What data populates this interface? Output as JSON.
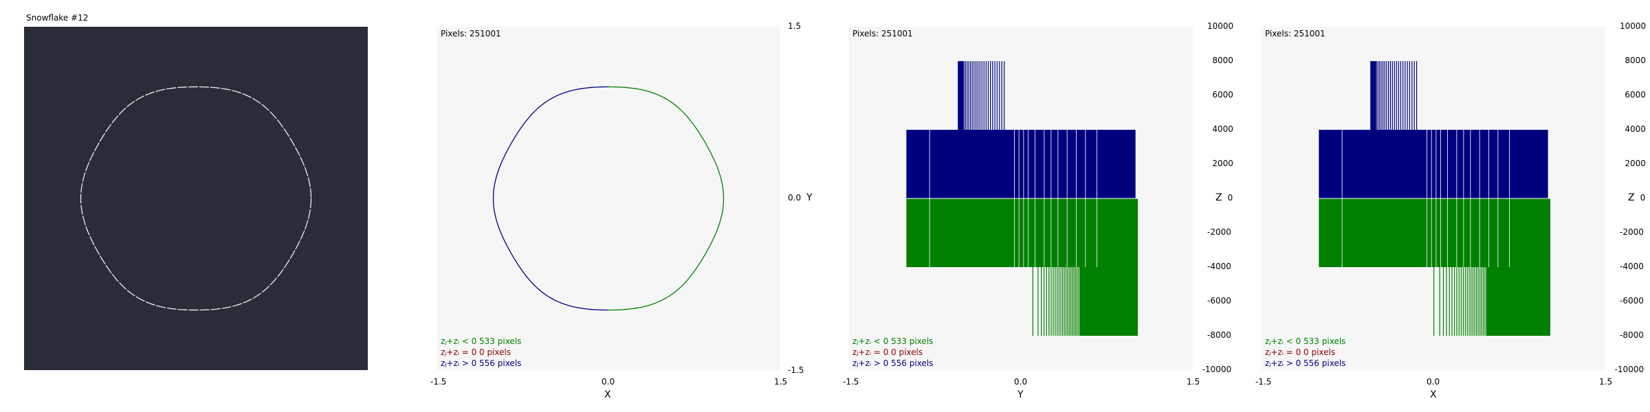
{
  "snowflake_title": "Snowflake #12",
  "colors": {
    "snow_bg": "#282d38",
    "snow_line": "#ffffff",
    "plot_bg": "#f6f6f6",
    "neg": "#008000",
    "zero": "#8b0000",
    "pos": "#00007f"
  },
  "panels": [
    {
      "pixels": "Pixels: 251001",
      "xlabel": "X",
      "ylabel": "Y",
      "xticks": [
        "-1.5",
        "0.0",
        "1.5"
      ],
      "yticks": [
        "1.5",
        "0.0",
        "-1.5"
      ]
    },
    {
      "pixels": "Pixels: 251001",
      "xlabel": "Y",
      "ylabel": "Z",
      "xticks": [
        "-1.5",
        "0.0",
        "1.5"
      ],
      "yticks": [
        "10000",
        "8000",
        "6000",
        "4000",
        "2000",
        "0",
        "-2000",
        "-4000",
        "-6000",
        "-8000",
        "-10000"
      ]
    },
    {
      "pixels": "Pixels: 251001",
      "xlabel": "X",
      "ylabel": "Z",
      "xticks": [
        "-1.5",
        "0.0",
        "1.5"
      ],
      "yticks": [
        "10000",
        "8000",
        "6000",
        "4000",
        "2000",
        "0",
        "-2000",
        "-4000",
        "-6000",
        "-8000",
        "-10000"
      ]
    }
  ],
  "legend": {
    "neg": "zⱼ+zᵢ < 0   533 pixels",
    "zero": "zⱼ+zᵢ = 0   0 pixels",
    "pos": "zⱼ+zᵢ > 0   556 pixels"
  },
  "chart_data": [
    {
      "type": "scatter",
      "title": "Snowflake #12",
      "description_values": {
        "radius": 1.0
      },
      "xlim": [
        -1.5,
        1.5
      ],
      "ylim": [
        -1.5,
        1.5
      ]
    },
    {
      "type": "scatter",
      "xlabel": "X",
      "ylabel": "Y",
      "xlim": [
        -1.5,
        1.5
      ],
      "ylim": [
        -1.5,
        1.5
      ],
      "series": [
        {
          "name": "zⱼ+zᵢ < 0",
          "count": 533
        },
        {
          "name": "zⱼ+zᵢ = 0",
          "count": 0
        },
        {
          "name": "zⱼ+zᵢ > 0",
          "count": 556
        }
      ]
    },
    {
      "type": "bar",
      "xlabel": "Y",
      "ylabel": "Z",
      "xlim": [
        -1.5,
        1.5
      ],
      "ylim": [
        -10000,
        10000
      ],
      "series": [
        {
          "name": "zⱼ+zᵢ > 0",
          "values": [
            4000,
            8000
          ]
        },
        {
          "name": "zⱼ+zᵢ < 0",
          "values": [
            -4000,
            -8000
          ]
        }
      ]
    },
    {
      "type": "bar",
      "xlabel": "X",
      "ylabel": "Z",
      "xlim": [
        -1.5,
        1.5
      ],
      "ylim": [
        -10000,
        10000
      ],
      "series": [
        {
          "name": "zⱼ+zᵢ > 0",
          "values": [
            4000,
            8000
          ]
        },
        {
          "name": "zⱼ+zᵢ < 0",
          "values": [
            -4000,
            -8000
          ]
        }
      ]
    }
  ]
}
